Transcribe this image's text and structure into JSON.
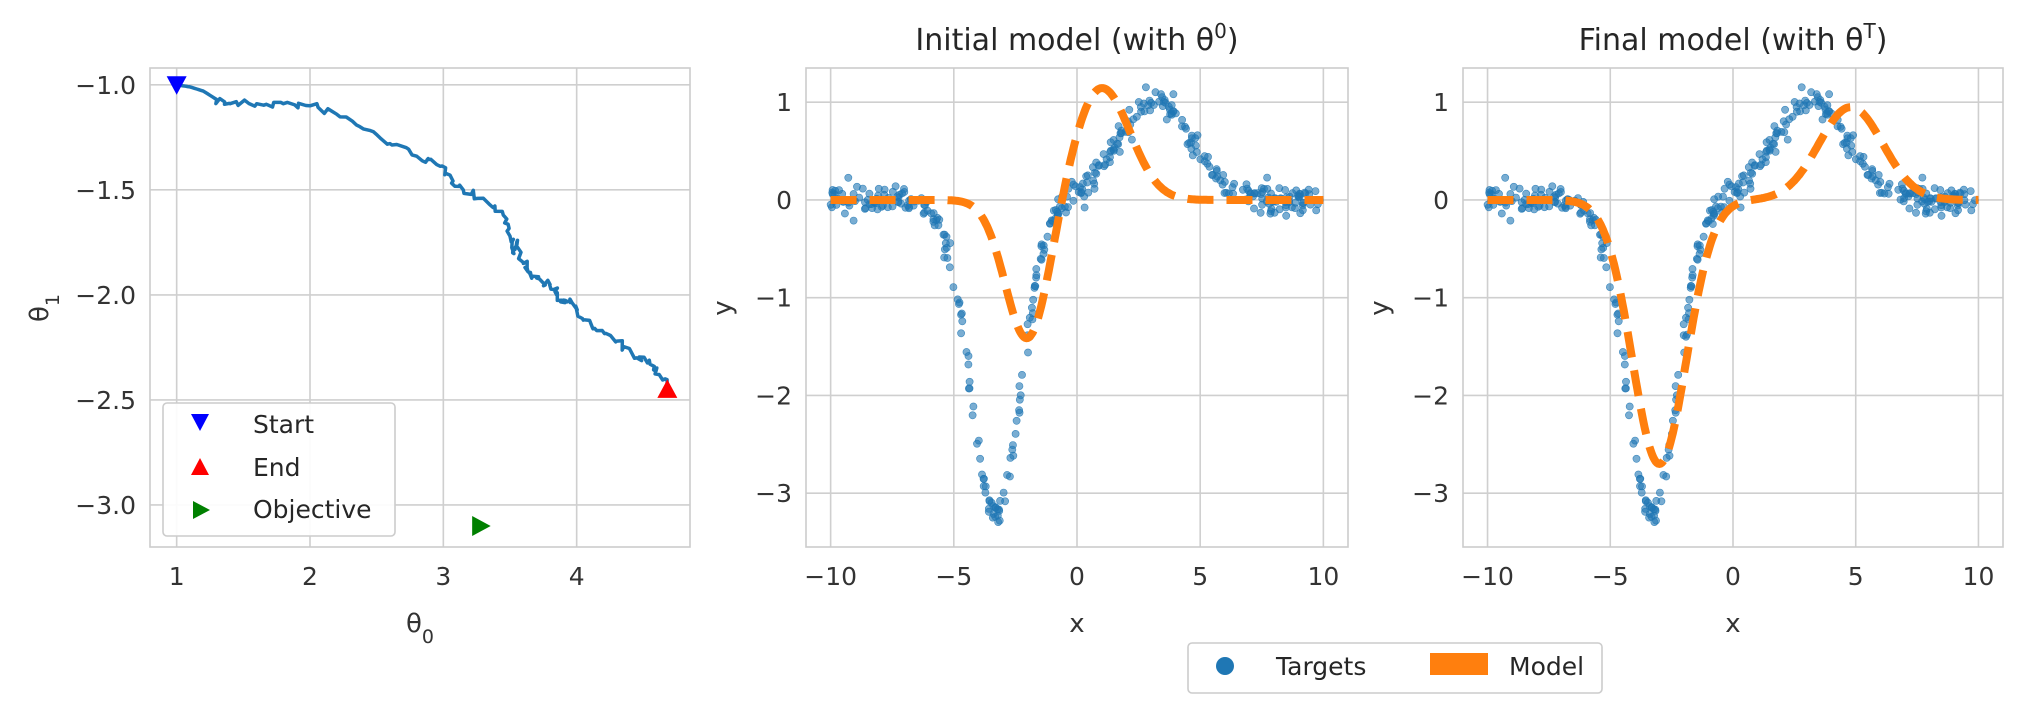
{
  "colors": {
    "path": "#1f77b4",
    "targets": "#1f77b4",
    "model": "#ff7f0e",
    "start": "#0000ff",
    "end": "#ff0000",
    "objective": "#008000"
  },
  "chart_data": [
    {
      "id": "trajectory",
      "type": "line",
      "title": "",
      "xlabel": "θ",
      "xlabel_sub": "0",
      "ylabel": "θ",
      "ylabel_sub": "1",
      "xlim": [
        0.8,
        4.85
      ],
      "ylim": [
        -3.2,
        -0.92
      ],
      "xticks": [
        1,
        2,
        3,
        4
      ],
      "xtick_labels": [
        "1",
        "2",
        "3",
        "4"
      ],
      "yticks": [
        -1.0,
        -1.5,
        -2.0,
        -2.5,
        -3.0
      ],
      "ytick_labels": [
        "−1.0",
        "−1.5",
        "−2.0",
        "−2.5",
        "−3.0"
      ],
      "grid": true,
      "series": [
        {
          "x": [
            1.0,
            1.1,
            1.2,
            1.3,
            1.4,
            1.6,
            1.8,
            2.0,
            2.2,
            2.4,
            2.6,
            2.8,
            2.95,
            3.05,
            3.15,
            3.3,
            3.45,
            3.5,
            3.52,
            3.55,
            3.6,
            3.65,
            3.7,
            3.8,
            3.85,
            3.9,
            3.95,
            4.05,
            4.15,
            4.3,
            4.45,
            4.55,
            4.62,
            4.68
          ],
          "y": [
            -1.0,
            -1.01,
            -1.03,
            -1.07,
            -1.09,
            -1.09,
            -1.09,
            -1.1,
            -1.14,
            -1.21,
            -1.28,
            -1.34,
            -1.38,
            -1.43,
            -1.5,
            -1.54,
            -1.62,
            -1.72,
            -1.8,
            -1.75,
            -1.85,
            -1.9,
            -1.92,
            -1.95,
            -2.0,
            -2.03,
            -2.02,
            -2.12,
            -2.17,
            -2.22,
            -2.3,
            -2.33,
            -2.38,
            -2.44
          ]
        }
      ],
      "markers": [
        {
          "name": "Start",
          "x": 1.0,
          "y": -1.0,
          "shape": "triangle-down"
        },
        {
          "name": "End",
          "x": 4.68,
          "y": -2.45,
          "shape": "triangle-up"
        },
        {
          "name": "Objective",
          "x": 3.28,
          "y": -3.1,
          "shape": "triangle-right"
        }
      ],
      "legend": {
        "placement": "lower-left",
        "entries": [
          "Start",
          "End",
          "Objective"
        ]
      }
    },
    {
      "id": "initial",
      "type": "scatter",
      "title": "Initial model (with θ",
      "title_sup": "0",
      "title_end": ")",
      "xlabel": "x",
      "ylabel": "y",
      "xlim": [
        -11,
        11
      ],
      "ylim": [
        -3.55,
        1.35
      ],
      "xticks": [
        -10,
        -5,
        0,
        5,
        10
      ],
      "xtick_labels": [
        "−10",
        "−5",
        "0",
        "5",
        "10"
      ],
      "yticks": [
        1,
        0,
        -1,
        -2,
        -3
      ],
      "ytick_labels": [
        "1",
        "0",
        "−1",
        "−2",
        "−3"
      ],
      "grid": true,
      "model": {
        "amp_neg": 1.45,
        "center_neg": -2.0,
        "width_neg": 0.9,
        "amp_pos": 1.15,
        "center_pos": 1.0,
        "width_pos": 1.15
      }
    },
    {
      "id": "final",
      "type": "scatter",
      "title": "Final model (with θ",
      "title_sup": "T",
      "title_end": ")",
      "xlabel": "x",
      "ylabel": "y",
      "xlim": [
        -11,
        11
      ],
      "ylim": [
        -3.55,
        1.35
      ],
      "xticks": [
        -10,
        -5,
        0,
        5,
        10
      ],
      "xtick_labels": [
        "−10",
        "−5",
        "0",
        "5",
        "10"
      ],
      "yticks": [
        1,
        0,
        -1,
        -2,
        -3
      ],
      "ytick_labels": [
        "1",
        "0",
        "−1",
        "−2",
        "−3"
      ],
      "grid": true,
      "model": {
        "amp_neg": 2.7,
        "center_neg": -3.0,
        "width_neg": 1.1,
        "amp_pos": 0.95,
        "center_pos": 4.8,
        "width_pos": 1.3
      }
    }
  ],
  "targets": {
    "amp_neg": 3.25,
    "center_neg": -3.3,
    "width_neg": 1.0,
    "amp_pos": 1.0,
    "center_pos": 3.2,
    "width_pos": 1.5,
    "noise": 0.08,
    "count": 400,
    "range": [
      -10,
      10
    ]
  },
  "legend": {
    "placement": "bottom-center",
    "entries": [
      "Targets",
      "Model"
    ]
  }
}
